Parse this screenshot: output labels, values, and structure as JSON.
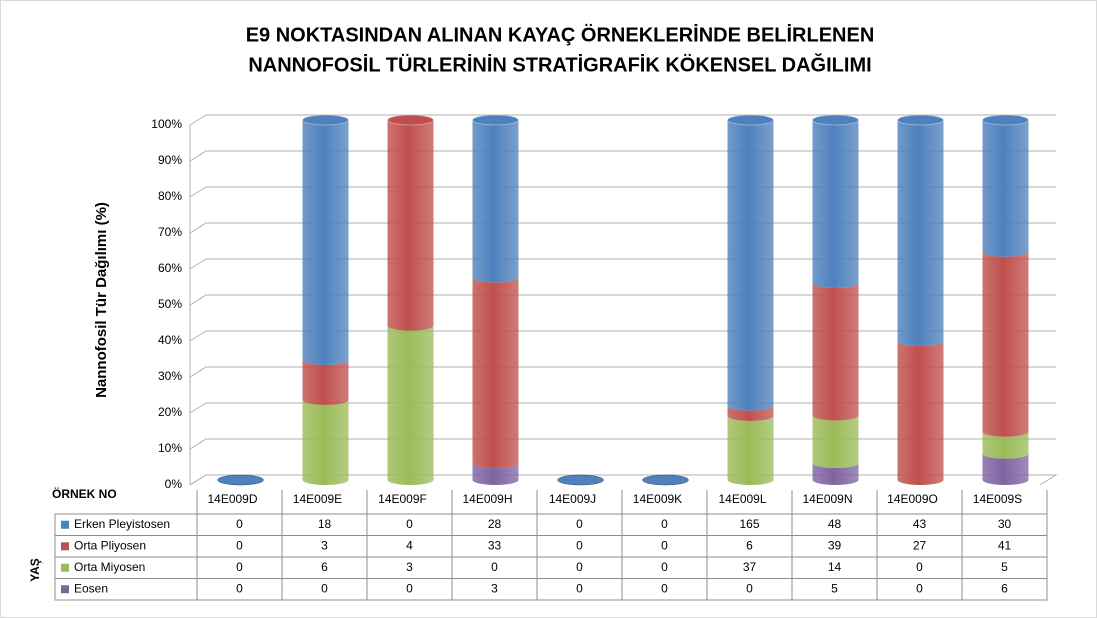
{
  "chart_data": {
    "type": "bar",
    "stacking": "percent",
    "title": [
      "E9 NOKTASINDAN ALINAN KAYAÇ ÖRNEKLERİNDE BELİRLENEN",
      "NANNOFOSİL TÜRLERİNİN STRATİGRAFİK KÖKENSEL DAĞILIMI"
    ],
    "y_label": "Nannofosil Tür Dağılımı (%)",
    "x_label": "ÖRNEK NO",
    "table_label": "YAŞ",
    "categories": [
      "14E009D",
      "14E009E",
      "14E009F",
      "14E009H",
      "14E009J",
      "14E009K",
      "14E009L",
      "14E009N",
      "14E009O",
      "14E009S"
    ],
    "series": [
      {
        "name": "Erken Pleyistosen",
        "color": "#4f81bd",
        "values": [
          0,
          18,
          0,
          28,
          0,
          0,
          165,
          48,
          43,
          30
        ]
      },
      {
        "name": "Orta Pliyosen",
        "color": "#c0504d",
        "values": [
          0,
          3,
          4,
          33,
          0,
          0,
          6,
          39,
          27,
          41
        ]
      },
      {
        "name": "Orta Miyosen",
        "color": "#9bbb59",
        "values": [
          0,
          6,
          3,
          0,
          0,
          0,
          37,
          14,
          0,
          5
        ]
      },
      {
        "name": "Eosen",
        "color": "#8064a2",
        "values": [
          0,
          0,
          0,
          3,
          0,
          0,
          0,
          5,
          0,
          6
        ]
      }
    ],
    "ylim": [
      0,
      100
    ],
    "yticks": [
      {
        "value": 0,
        "label": "0%"
      },
      {
        "value": 10,
        "label": "10%"
      },
      {
        "value": 20,
        "label": "20%"
      },
      {
        "value": 30,
        "label": "30%"
      },
      {
        "value": 40,
        "label": "40%"
      },
      {
        "value": 50,
        "label": "50%"
      },
      {
        "value": 60,
        "label": "60%"
      },
      {
        "value": 70,
        "label": "70%"
      },
      {
        "value": 80,
        "label": "80%"
      },
      {
        "value": 90,
        "label": "90%"
      },
      {
        "value": 100,
        "label": "100%"
      }
    ],
    "grid": true
  }
}
